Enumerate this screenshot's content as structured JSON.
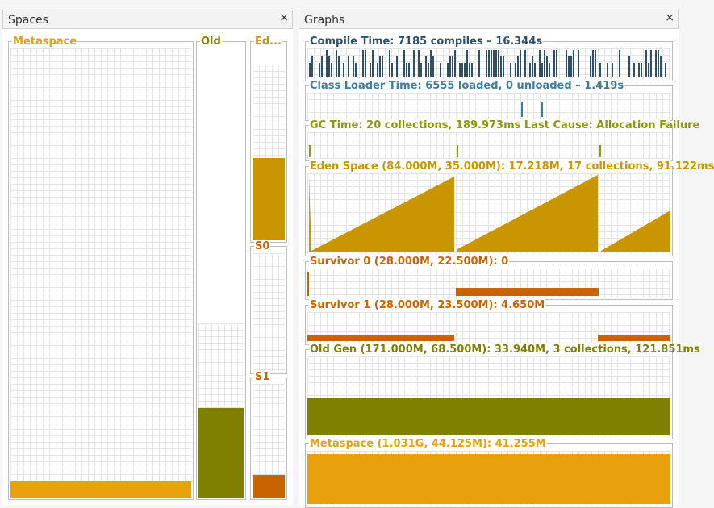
{
  "spaces_panel": {
    "title": "Spaces",
    "close_label": "×",
    "metaspace": {
      "label": "Metaspace",
      "color": "#e8a00c",
      "used_fraction": 0.04
    },
    "old": {
      "label": "Old",
      "color": "#7f7f00",
      "used_fraction": 0.195,
      "committed_fraction": 0.4
    },
    "eden": {
      "label": "Ed...",
      "color": "#c99500",
      "used_fraction": 0.48
    },
    "s0": {
      "label": "S0",
      "color": "#c86400",
      "used_fraction": 0.0
    },
    "s1": {
      "label": "S1",
      "color": "#c86400",
      "used_fraction": 0.2
    }
  },
  "graphs_panel": {
    "title": "Graphs",
    "close_label": "×",
    "compile_time": {
      "label": "Compile Time: 7185 compiles – 16.344s",
      "color": "#2f5068"
    },
    "class_loader": {
      "label": "Class Loader Time: 6555 loaded, 0 unloaded – 1.419s",
      "color": "#3c7d9e"
    },
    "gc_time": {
      "label": "GC Time: 20 collections, 189.973ms Last Cause: Allocation Failure",
      "color": "#8a9a00"
    },
    "eden_space": {
      "label": "Eden Space (84.000M, 35.000M): 17.218M, 17 collections, 91.122ms",
      "color": "#c99500"
    },
    "survivor0": {
      "label": "Survivor 0 (28.000M, 22.500M): 0",
      "color": "#c86400"
    },
    "survivor1": {
      "label": "Survivor 1 (28.000M, 23.500M): 4.650M",
      "color": "#c86400"
    },
    "old_gen": {
      "label": "Old Gen (171.000M, 68.500M): 33.940M, 3 collections, 121.851ms",
      "color": "#7f7f00"
    },
    "metaspace": {
      "label": "Metaspace (1.031G, 44.125M): 41.255M",
      "color": "#e8a00c"
    }
  }
}
